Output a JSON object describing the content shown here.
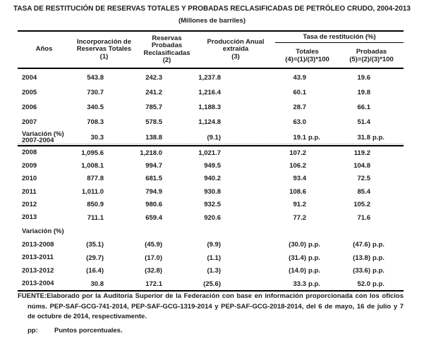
{
  "title": "TASA DE RESTITUCIÓN DE RESERVAS TOTALES Y PROBADAS RECLASIFICADAS DE PETRÓLEO CRUDO, 2004-2013",
  "subtitle": "(Millones de barriles)",
  "table": {
    "group_header": "Tasa de restitución (%)",
    "columns": [
      {
        "label": "Años"
      },
      {
        "label": "Incorporación de\nReservas Totales\n(1)"
      },
      {
        "label": "Reservas Probadas\nReclasificadas\n(2)"
      },
      {
        "label": "Producción Anual\nextraída\n(3)"
      },
      {
        "label": "Totales\n(4)=(1)/(3)*100"
      },
      {
        "label": "Probadas\n(5)=(2)/(3)*100"
      }
    ],
    "rows": [
      {
        "type": "year-a",
        "label": "2004",
        "cells": [
          "543.8",
          "242.3",
          "1,237.8",
          "43.9",
          "19.6"
        ]
      },
      {
        "type": "year-a",
        "label": "2005",
        "cells": [
          "730.7",
          "241.2",
          "1,216.4",
          "60.1",
          "19.8"
        ]
      },
      {
        "type": "year-a",
        "label": "2006",
        "cells": [
          "340.5",
          "785.7",
          "1,188.3",
          "28.7",
          "66.1"
        ]
      },
      {
        "type": "year-a",
        "label": "2007",
        "cells": [
          "708.3",
          "578.5",
          "1,124.8",
          "63.0",
          "51.4"
        ]
      },
      {
        "type": "variation-divider",
        "label": "Variación (%)\n2007-2004",
        "cells": [
          "30.3",
          "138.8",
          "(9.1)",
          "19.1 p.p.",
          "31.8 p.p."
        ]
      },
      {
        "type": "year-b",
        "label": "2008",
        "cells": [
          "1,095.6",
          "1,218.0",
          "1,021.7",
          "107.2",
          "119.2"
        ]
      },
      {
        "type": "year-b",
        "label": "2009",
        "cells": [
          "1,008.1",
          "994.7",
          "949.5",
          "106.2",
          "104.8"
        ]
      },
      {
        "type": "year-b",
        "label": "2010",
        "cells": [
          "877.8",
          "681.5",
          "940.2",
          "93.4",
          "72.5"
        ]
      },
      {
        "type": "year-b",
        "label": "2011",
        "cells": [
          "1,011.0",
          "794.9",
          "930.8",
          "108.6",
          "85.4"
        ]
      },
      {
        "type": "year-b",
        "label": "2012",
        "cells": [
          "850.9",
          "980.6",
          "932.5",
          "91.2",
          "105.2"
        ]
      },
      {
        "type": "year-b",
        "label": "2013",
        "cells": [
          "711.1",
          "659.4",
          "920.6",
          "77.2",
          "71.6"
        ]
      },
      {
        "type": "section-label",
        "label": "Variación (%)",
        "cells": [
          "",
          "",
          "",
          "",
          ""
        ]
      },
      {
        "type": "variation-pp",
        "label": "2013-2008",
        "cells": [
          "(35.1)",
          "(45.9)",
          "(9.9)",
          "(30.0) p.p.",
          "(47.6) p.p."
        ]
      },
      {
        "type": "variation-pp",
        "label": "2013-2011",
        "cells": [
          "(29.7)",
          "(17.0)",
          "(1.1)",
          "(31.4) p.p.",
          "(13.8) p.p."
        ]
      },
      {
        "type": "variation-pp",
        "label": "2013-2012",
        "cells": [
          "(16.4)",
          "(32.8)",
          "(1.3)",
          "(14.0) p.p.",
          "(33.6) p.p."
        ]
      },
      {
        "type": "variation-pp",
        "label": "2013-2004",
        "cells": [
          "30.8",
          "172.1",
          "(25.6)",
          "33.3 p.p.",
          "52.0 p.p."
        ]
      }
    ]
  },
  "footer": {
    "source_label": "FUENTE:",
    "source_text": "Elaborado por la Auditoría Superior de la Federación con base en información proporcionada con los oficios núms. PEP-SAF-GCG-741-2014, PEP-SAF-GCG-1319-2014 y PEP-SAF-GCG-2018-2014, del 6 de mayo, 16 de julio y 7 de octubre de 2014, respectivamente.",
    "pp_label": "pp:",
    "pp_text": "Puntos porcentuales."
  }
}
